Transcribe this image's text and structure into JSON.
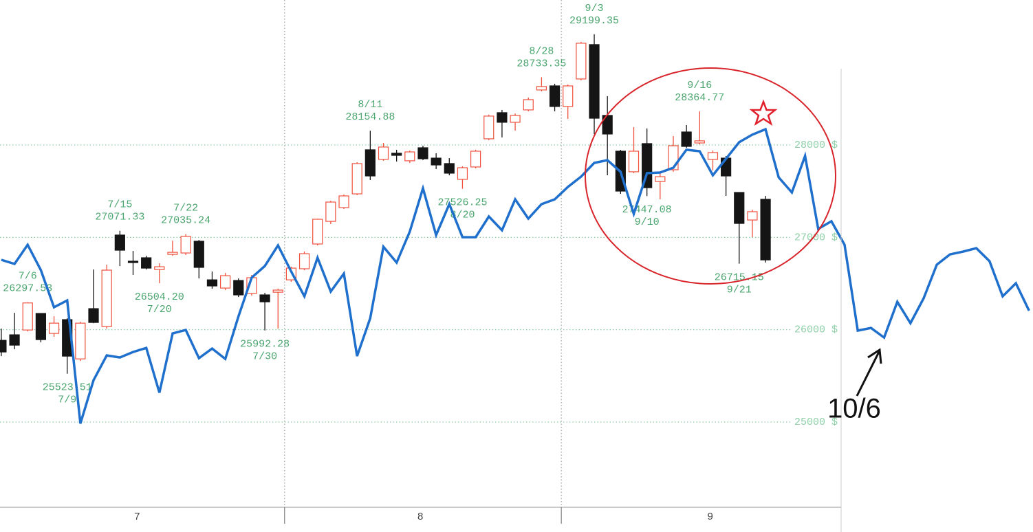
{
  "chart_data": {
    "type": "candlestick",
    "ylim": [
      24100,
      29570
    ],
    "yticks": [
      {
        "value": 25000,
        "label": "25000 $"
      },
      {
        "value": 26000,
        "label": "26000 $"
      },
      {
        "value": 27000,
        "label": "27000 $"
      },
      {
        "value": 28000,
        "label": "28000 $"
      }
    ],
    "xlim": [
      -0.1,
      78.3
    ],
    "xticks": [
      {
        "value": 10.3,
        "label": "7"
      },
      {
        "value": 31.8,
        "label": "8"
      },
      {
        "value": 53.8,
        "label": "9"
      }
    ],
    "month_dividers": [
      21.5,
      42.5
    ],
    "grid": true,
    "up_color": "#f0503c",
    "down_color": "#151515",
    "label_color": "#4aa56e",
    "candles": [
      {
        "open": 25885,
        "high": 26012,
        "low": 25714,
        "close": 25759
      },
      {
        "open": 25945,
        "high": 26183,
        "low": 25788,
        "close": 25833
      },
      {
        "open": 25997,
        "high": 26297.53,
        "low": 25982,
        "close": 26290,
        "label": {
          "date": "7/6",
          "value": "26297.53",
          "at": "high"
        }
      },
      {
        "open": 26176,
        "high": 26180,
        "low": 25863,
        "close": 25893
      },
      {
        "open": 25960,
        "high": 26146,
        "low": 25923,
        "close": 26071
      },
      {
        "open": 26109,
        "high": 26124,
        "low": 25523.51,
        "close": 25714,
        "label": {
          "date": "7/9",
          "value": "25523.51",
          "at": "low"
        }
      },
      {
        "open": 25684,
        "high": 26086,
        "low": 25662,
        "close": 26071
      },
      {
        "open": 26228,
        "high": 26652,
        "low": 26071,
        "close": 26079
      },
      {
        "open": 26034,
        "high": 26704,
        "low": 26012,
        "close": 26645
      },
      {
        "open": 27025,
        "high": 27071.33,
        "low": 26689,
        "close": 26861,
        "label": {
          "date": "7/15",
          "value": "27071.33",
          "at": "high"
        }
      },
      {
        "open": 26742,
        "high": 26853,
        "low": 26593,
        "close": 26727
      },
      {
        "open": 26779,
        "high": 26801,
        "low": 26652,
        "close": 26667
      },
      {
        "open": 26652,
        "high": 26719,
        "low": 26504.2,
        "close": 26682,
        "label": {
          "date": "7/20",
          "value": "26504.20",
          "at": "low"
        }
      },
      {
        "open": 26816,
        "high": 26965,
        "low": 26801,
        "close": 26838
      },
      {
        "open": 26831,
        "high": 27035.24,
        "low": 26809,
        "close": 27010,
        "label": {
          "date": "7/22",
          "value": "27035.24",
          "at": "high"
        }
      },
      {
        "open": 26958,
        "high": 26972,
        "low": 26555,
        "close": 26675
      },
      {
        "open": 26540,
        "high": 26630,
        "low": 26444,
        "close": 26474
      },
      {
        "open": 26451,
        "high": 26615,
        "low": 26429,
        "close": 26585
      },
      {
        "open": 26533,
        "high": 26555,
        "low": 26354,
        "close": 26377
      },
      {
        "open": 26392,
        "high": 26593,
        "low": 26369,
        "close": 26563
      },
      {
        "open": 26377,
        "high": 26399,
        "low": 25992.28,
        "close": 26302,
        "label": {
          "date": "7/30",
          "value": "25992.28",
          "at": "low"
        }
      },
      {
        "open": 26406,
        "high": 26444,
        "low": 26012,
        "close": 26429
      },
      {
        "open": 26540,
        "high": 26682,
        "low": 26518,
        "close": 26667
      },
      {
        "open": 26660,
        "high": 26846,
        "low": 26645,
        "close": 26823
      },
      {
        "open": 26928,
        "high": 27203,
        "low": 26913,
        "close": 27196
      },
      {
        "open": 27173,
        "high": 27397,
        "low": 27144,
        "close": 27382
      },
      {
        "open": 27322,
        "high": 27464,
        "low": 27307,
        "close": 27449
      },
      {
        "open": 27471,
        "high": 27814,
        "low": 27456,
        "close": 27799
      },
      {
        "open": 27948,
        "high": 28154.88,
        "low": 27620,
        "close": 27665,
        "label": {
          "date": "8/11",
          "value": "28154.88",
          "at": "high"
        }
      },
      {
        "open": 27844,
        "high": 28022,
        "low": 27829,
        "close": 27978
      },
      {
        "open": 27911,
        "high": 27948,
        "low": 27821,
        "close": 27888
      },
      {
        "open": 27829,
        "high": 27940,
        "low": 27806,
        "close": 27925
      },
      {
        "open": 27970,
        "high": 27992,
        "low": 27836,
        "close": 27851
      },
      {
        "open": 27858,
        "high": 27911,
        "low": 27739,
        "close": 27784
      },
      {
        "open": 27799,
        "high": 27858,
        "low": 27672,
        "close": 27695
      },
      {
        "open": 27628,
        "high": 27769,
        "low": 27526.25,
        "close": 27754,
        "label": {
          "date": "8/20",
          "value": "27526.25",
          "at": "low"
        }
      },
      {
        "open": 27762,
        "high": 27948,
        "low": 27747,
        "close": 27933
      },
      {
        "open": 28067,
        "high": 28328,
        "low": 28052,
        "close": 28313
      },
      {
        "open": 28350,
        "high": 28380,
        "low": 28082,
        "close": 28246
      },
      {
        "open": 28246,
        "high": 28342,
        "low": 28156,
        "close": 28320
      },
      {
        "open": 28380,
        "high": 28514,
        "low": 28365,
        "close": 28491
      },
      {
        "open": 28596,
        "high": 28733.35,
        "low": 28581,
        "close": 28633,
        "label": {
          "date": "8/28",
          "value": "28733.35",
          "at": "high"
        }
      },
      {
        "open": 28640,
        "high": 28663,
        "low": 28365,
        "close": 28417
      },
      {
        "open": 28417,
        "high": 28655,
        "low": 28283,
        "close": 28640
      },
      {
        "open": 28715,
        "high": 29117,
        "low": 28700,
        "close": 29102
      },
      {
        "open": 29087,
        "high": 29199.35,
        "low": 28119,
        "close": 28290,
        "label": {
          "date": "9/3",
          "value": "29199.35",
          "at": "high"
        }
      },
      {
        "open": 28320,
        "high": 28529,
        "low": 27672,
        "close": 28119
      },
      {
        "open": 27933,
        "high": 27948,
        "low": 27471,
        "close": 27501
      },
      {
        "open": 27710,
        "high": 28194,
        "low": 27695,
        "close": 27933
      },
      {
        "open": 28015,
        "high": 28179,
        "low": 27447.08,
        "close": 27538,
        "label": {
          "date": "9/10",
          "value": "27447.08",
          "at": "low"
        }
      },
      {
        "open": 27605,
        "high": 27710,
        "low": 27412,
        "close": 27657
      },
      {
        "open": 27732,
        "high": 28097,
        "low": 27710,
        "close": 27992
      },
      {
        "open": 28141,
        "high": 28216,
        "low": 27970,
        "close": 27985
      },
      {
        "open": 28022,
        "high": 28364.77,
        "low": 28007,
        "close": 28045,
        "label": {
          "date": "9/16",
          "value": "28364.77",
          "at": "high"
        }
      },
      {
        "open": 27844,
        "high": 27940,
        "low": 27724,
        "close": 27918
      },
      {
        "open": 27858,
        "high": 27881,
        "low": 27449,
        "close": 27665
      },
      {
        "open": 27486,
        "high": 27486,
        "low": 26715.15,
        "close": 27151,
        "label": {
          "date": "9/21",
          "value": "26715.15",
          "at": "low"
        }
      },
      {
        "open": 27188,
        "high": 27300,
        "low": 27002,
        "close": 27278
      },
      {
        "open": 27412,
        "high": 27449,
        "low": 26727,
        "close": 26756
      }
    ],
    "line": {
      "color": "#1f6fcc",
      "values": [
        26757,
        26712,
        26920,
        26645,
        26243,
        26317,
        24984,
        25453,
        25722,
        25699,
        25759,
        25803,
        25319,
        25960,
        25997,
        25692,
        25796,
        25684,
        26146,
        26563,
        26690,
        26913,
        26630,
        26362,
        26779,
        26414,
        26608,
        25714,
        26124,
        26898,
        26727,
        27062,
        27531,
        27025,
        27360,
        27002,
        27002,
        27226,
        27077,
        27412,
        27203,
        27360,
        27412,
        27546,
        27657,
        27806,
        27836,
        27710,
        27255,
        27695,
        27702,
        27754,
        27948,
        27933,
        27672,
        27851,
        28030,
        28112,
        28171,
        27650,
        27486,
        27881,
        27092,
        27174,
        26920,
        25990,
        26019,
        25915,
        26302,
        26071,
        26340,
        26704,
        26816,
        26846,
        26883,
        26742,
        26362,
        26503,
        26206
      ]
    },
    "callout": {
      "text": "10/6"
    }
  }
}
